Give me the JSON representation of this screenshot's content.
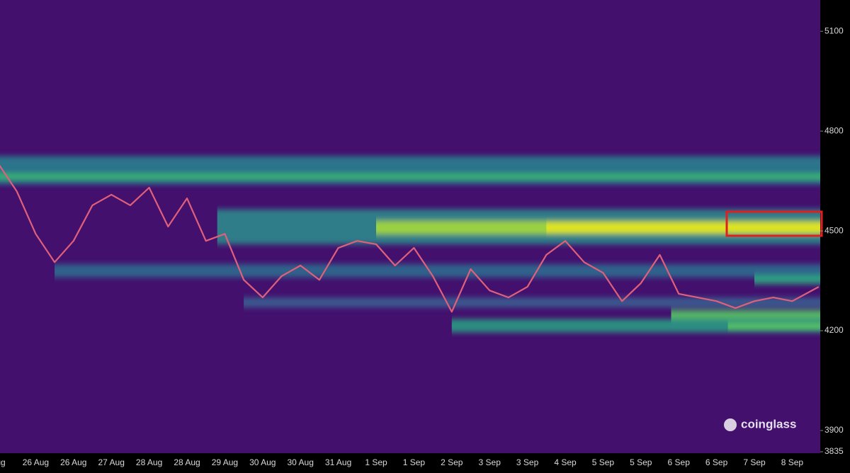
{
  "chart_data": {
    "type": "heatmap",
    "watermark": "coinglass",
    "background": "#44106e",
    "categories": [
      "Aug",
      "26 Aug",
      "26 Aug",
      "27 Aug",
      "28 Aug",
      "28 Aug",
      "29 Aug",
      "30 Aug",
      "30 Aug",
      "31 Aug",
      "1 Sep",
      "1 Sep",
      "2 Sep",
      "3 Sep",
      "3 Sep",
      "4 Sep",
      "5 Sep",
      "5 Sep",
      "6 Sep",
      "6 Sep",
      "7 Sep",
      "8 Sep"
    ],
    "ylim": [
      3832,
      5194
    ],
    "yticks": [
      3835,
      3900,
      4200,
      4500,
      4800,
      5100
    ],
    "bands": [
      {
        "low": 4640,
        "high": 4725,
        "start": 0,
        "color": "#2a7f8e"
      },
      {
        "low": 4655,
        "high": 4672,
        "start": 0,
        "color": "#3cbf6a"
      },
      {
        "low": 4360,
        "high": 4400,
        "start": 1.5,
        "color": "#2f6c8f"
      },
      {
        "low": 4460,
        "high": 4565,
        "start": 5.8,
        "color": "#2b8a8c"
      },
      {
        "low": 4490,
        "high": 4530,
        "start": 10,
        "color": "#a8db3a"
      },
      {
        "low": 4495,
        "high": 4525,
        "start": 14.5,
        "color": "#e8e51c"
      },
      {
        "low": 4195,
        "high": 4235,
        "start": 12,
        "color": "#2a9b84"
      },
      {
        "low": 4205,
        "high": 4222,
        "start": 19.3,
        "color": "#5fd05a"
      },
      {
        "low": 4235,
        "high": 4262,
        "start": 17.8,
        "color": "#57c964"
      },
      {
        "low": 4340,
        "high": 4368,
        "start": 20,
        "color": "#2ea883"
      },
      {
        "low": 4270,
        "high": 4300,
        "start": 6.5,
        "color": "#3a5f92"
      }
    ],
    "price": {
      "color": "#e0607a",
      "x": [
        0,
        0.5,
        1,
        1.5,
        2,
        2.5,
        3,
        3.5,
        4,
        4.5,
        5,
        5.5,
        6,
        6.5,
        7,
        7.5,
        8,
        8.5,
        9,
        9.5,
        10,
        10.5,
        11,
        11.5,
        12,
        12.5,
        13,
        13.5,
        14,
        14.5,
        15,
        15.5,
        16,
        16.5,
        17,
        17.5,
        18,
        18.5,
        19,
        19.5,
        20,
        20.5,
        21,
        21.7
      ],
      "values": [
        4704,
        4619,
        4491,
        4406,
        4470,
        4577,
        4609,
        4577,
        4630,
        4513,
        4598,
        4470,
        4491,
        4353,
        4300,
        4364,
        4396,
        4353,
        4449,
        4470,
        4460,
        4396,
        4449,
        4364,
        4257,
        4385,
        4321,
        4300,
        4332,
        4428,
        4470,
        4406,
        4374,
        4289,
        4343,
        4428,
        4311,
        4300,
        4289,
        4268,
        4289,
        4300,
        4289,
        4332
      ]
    }
  }
}
